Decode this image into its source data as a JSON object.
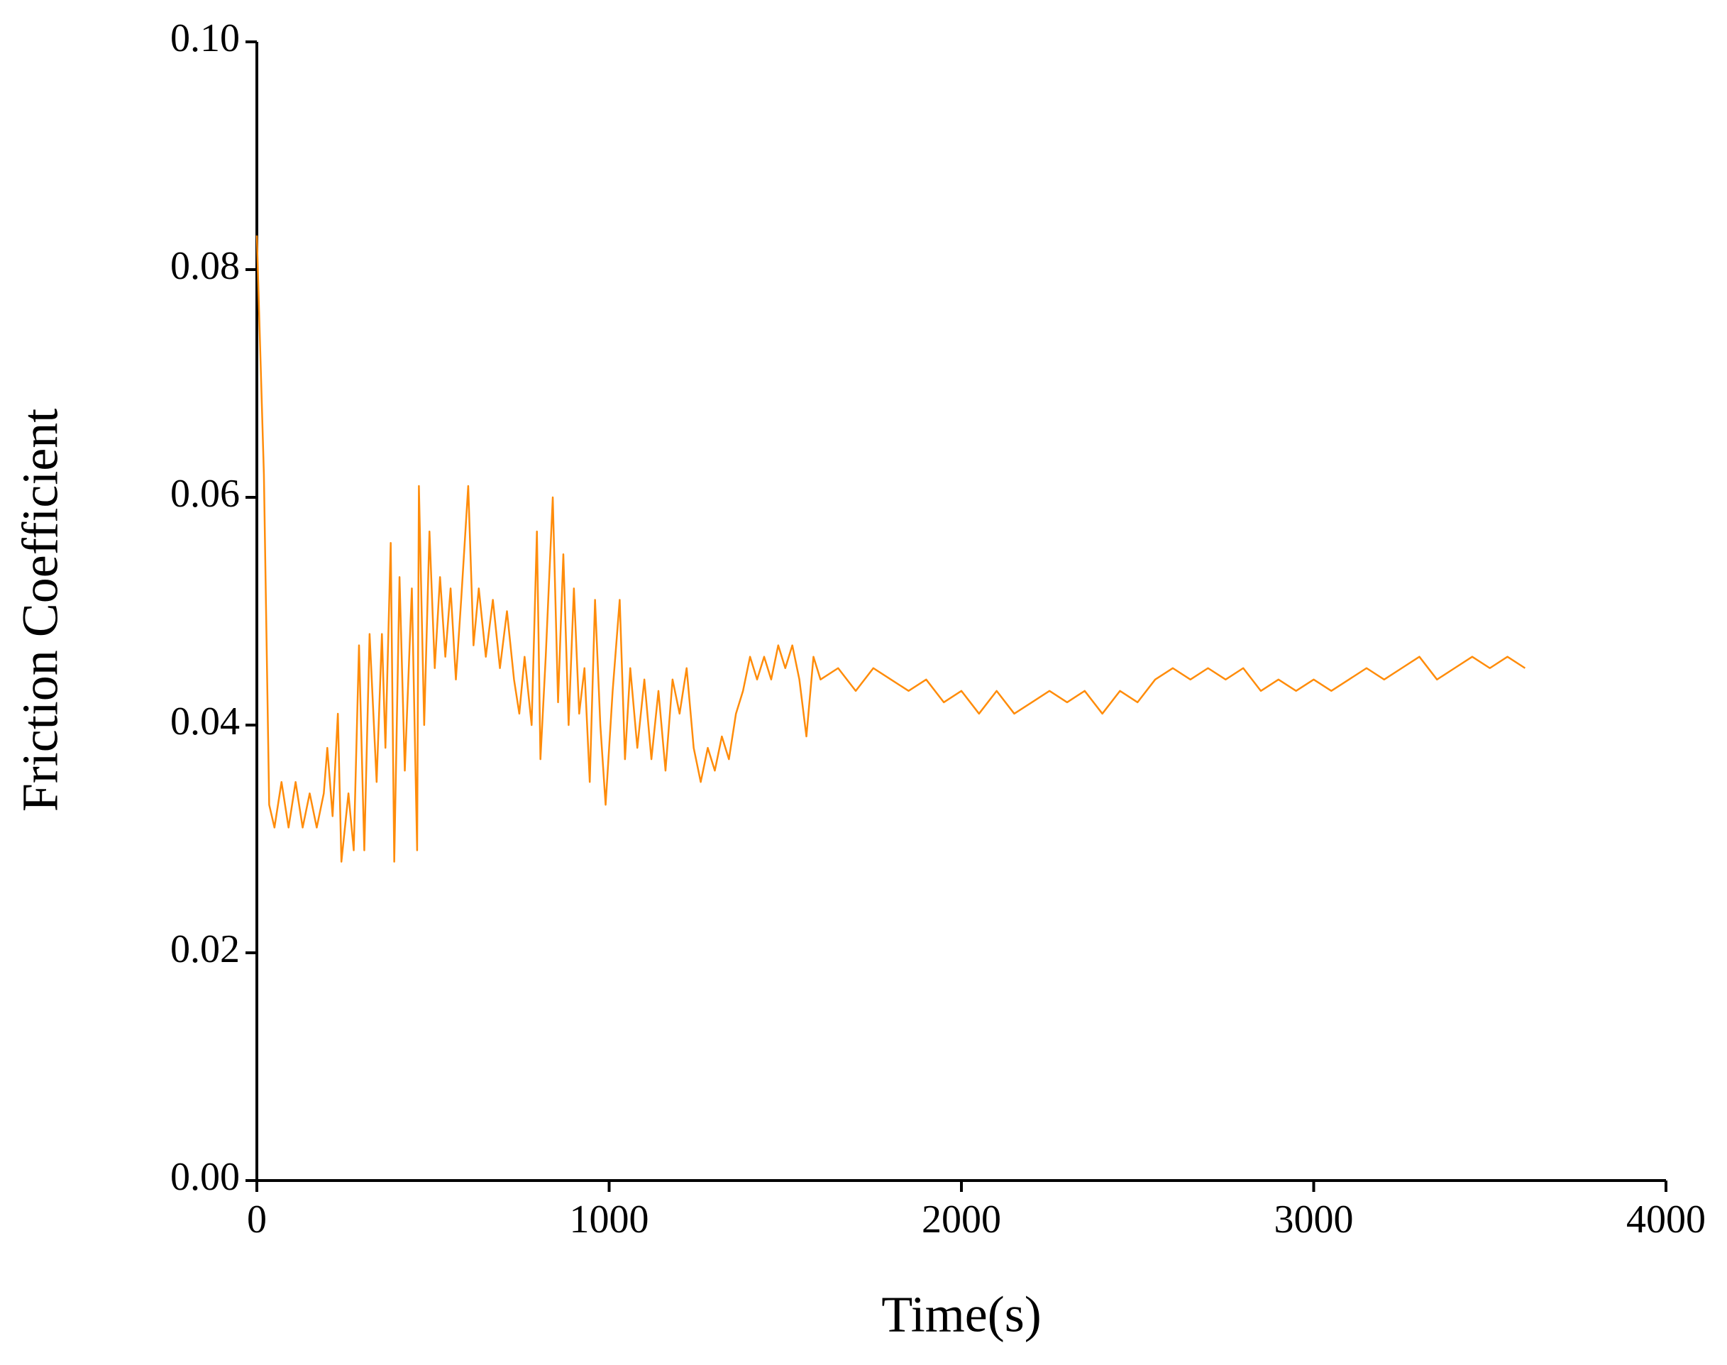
{
  "chart_data": {
    "type": "line",
    "x_label": "Time(s)",
    "y_label": "Friction Coefficient",
    "xlim": [
      0,
      4000
    ],
    "xticks": [
      0,
      1000,
      2000,
      3000,
      4000
    ],
    "ylim": [
      0,
      0.1
    ],
    "yticks": [
      {
        "value": 0,
        "label": "0.00"
      },
      {
        "value": 0.02,
        "label": "0.02"
      },
      {
        "value": 0.04,
        "label": "0.04"
      },
      {
        "value": 0.06,
        "label": "0.06"
      },
      {
        "value": 0.08,
        "label": "0.08"
      },
      {
        "value": 0.1,
        "label": "0.10"
      }
    ],
    "series": [
      {
        "color": "#ff8c0a",
        "x": [
          0,
          20,
          35,
          50,
          70,
          90,
          110,
          130,
          150,
          170,
          190,
          200,
          215,
          230,
          240,
          260,
          275,
          290,
          305,
          320,
          340,
          355,
          365,
          380,
          390,
          405,
          420,
          440,
          455,
          460,
          475,
          490,
          505,
          520,
          535,
          550,
          565,
          580,
          600,
          615,
          630,
          650,
          670,
          690,
          710,
          730,
          745,
          760,
          780,
          795,
          805,
          820,
          840,
          855,
          870,
          885,
          900,
          915,
          930,
          945,
          960,
          975,
          990,
          1010,
          1030,
          1045,
          1060,
          1080,
          1100,
          1120,
          1140,
          1160,
          1180,
          1200,
          1220,
          1240,
          1260,
          1280,
          1300,
          1320,
          1340,
          1360,
          1380,
          1400,
          1420,
          1440,
          1460,
          1480,
          1500,
          1520,
          1540,
          1560,
          1580,
          1600,
          1650,
          1700,
          1750,
          1800,
          1850,
          1900,
          1950,
          2000,
          2050,
          2100,
          2150,
          2200,
          2250,
          2300,
          2350,
          2400,
          2450,
          2500,
          2550,
          2600,
          2650,
          2700,
          2750,
          2800,
          2850,
          2900,
          2950,
          3000,
          3050,
          3100,
          3150,
          3200,
          3250,
          3300,
          3350,
          3400,
          3450,
          3500,
          3550,
          3600
        ],
        "values": [
          0.083,
          0.062,
          0.033,
          0.031,
          0.035,
          0.031,
          0.035,
          0.031,
          0.034,
          0.031,
          0.034,
          0.038,
          0.032,
          0.041,
          0.028,
          0.034,
          0.029,
          0.047,
          0.029,
          0.048,
          0.035,
          0.048,
          0.038,
          0.056,
          0.028,
          0.053,
          0.036,
          0.052,
          0.029,
          0.061,
          0.04,
          0.057,
          0.045,
          0.053,
          0.046,
          0.052,
          0.044,
          0.051,
          0.061,
          0.047,
          0.052,
          0.046,
          0.051,
          0.045,
          0.05,
          0.044,
          0.041,
          0.046,
          0.04,
          0.057,
          0.037,
          0.046,
          0.06,
          0.042,
          0.055,
          0.04,
          0.052,
          0.041,
          0.045,
          0.035,
          0.051,
          0.04,
          0.033,
          0.043,
          0.051,
          0.037,
          0.045,
          0.038,
          0.044,
          0.037,
          0.043,
          0.036,
          0.044,
          0.041,
          0.045,
          0.038,
          0.035,
          0.038,
          0.036,
          0.039,
          0.037,
          0.041,
          0.043,
          0.046,
          0.044,
          0.046,
          0.044,
          0.047,
          0.045,
          0.047,
          0.044,
          0.039,
          0.046,
          0.044,
          0.045,
          0.043,
          0.045,
          0.044,
          0.043,
          0.044,
          0.042,
          0.043,
          0.041,
          0.043,
          0.041,
          0.042,
          0.043,
          0.042,
          0.043,
          0.041,
          0.043,
          0.042,
          0.044,
          0.045,
          0.044,
          0.045,
          0.044,
          0.045,
          0.043,
          0.044,
          0.043,
          0.044,
          0.043,
          0.044,
          0.045,
          0.044,
          0.045,
          0.046,
          0.044,
          0.045,
          0.046,
          0.045,
          0.046,
          0.045
        ]
      }
    ]
  }
}
